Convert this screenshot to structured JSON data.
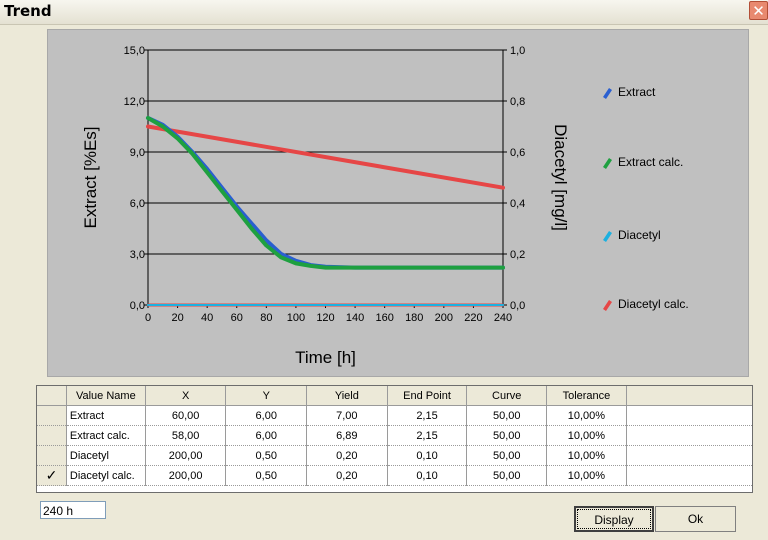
{
  "window": {
    "title": "Trend",
    "close_glyph": "✕"
  },
  "chart_data": {
    "type": "line",
    "xlabel": "Time [h]",
    "ylabel_left": "Extract [%Es]",
    "ylabel_right": "Diacetyl [mg/l]",
    "xlim": [
      0,
      240
    ],
    "ylim_left": [
      0,
      15
    ],
    "ylim_right": [
      0,
      1
    ],
    "x_ticks": [
      "0",
      "20",
      "40",
      "60",
      "80",
      "100",
      "120",
      "140",
      "160",
      "180",
      "200",
      "220",
      "240"
    ],
    "y_ticks_left": [
      "0,0",
      "3,0",
      "6,0",
      "9,0",
      "12,0",
      "15,0"
    ],
    "y_ticks_right": [
      "0,0",
      "0,2",
      "0,4",
      "0,6",
      "0,8",
      "1,0"
    ],
    "grid": true,
    "legend_position": "right",
    "series": [
      {
        "name": "Extract",
        "color": "#2a5fd0",
        "axis": "left",
        "x": [
          0,
          10,
          20,
          30,
          40,
          50,
          60,
          70,
          80,
          90,
          100,
          110,
          120,
          140,
          160,
          180,
          200,
          220,
          240
        ],
        "y": [
          11.0,
          10.6,
          9.9,
          9.0,
          8.0,
          6.9,
          5.8,
          4.8,
          3.8,
          3.0,
          2.6,
          2.35,
          2.25,
          2.2,
          2.2,
          2.2,
          2.2,
          2.2,
          2.2
        ]
      },
      {
        "name": "Extract calc.",
        "color": "#1ea040",
        "axis": "left",
        "x": [
          0,
          10,
          20,
          30,
          40,
          50,
          60,
          70,
          80,
          90,
          100,
          110,
          120,
          140,
          160,
          180,
          200,
          220,
          240
        ],
        "y": [
          11.0,
          10.5,
          9.8,
          8.9,
          7.8,
          6.7,
          5.6,
          4.5,
          3.5,
          2.8,
          2.45,
          2.3,
          2.2,
          2.2,
          2.2,
          2.2,
          2.2,
          2.2,
          2.2
        ]
      },
      {
        "name": "Diacetyl",
        "color": "#1cb0e0",
        "axis": "right",
        "x": [
          0,
          240
        ],
        "y": [
          0.0,
          0.0
        ]
      },
      {
        "name": "Diacetyl calc.",
        "color": "#e64646",
        "axis": "right",
        "x": [
          0,
          240
        ],
        "y": [
          0.7,
          0.46
        ]
      }
    ],
    "diacetyl_calc_baseline": {
      "x": [
        0,
        240
      ],
      "y": [
        0.0,
        0.0
      ]
    }
  },
  "table": {
    "columns": [
      "Value Name",
      "X",
      "Y",
      "Yield",
      "End Point",
      "Curve",
      "Tolerance"
    ],
    "rows": [
      {
        "check": "",
        "name": "Extract",
        "x": "60,00",
        "y": "6,00",
        "yield": "7,00",
        "end": "2,15",
        "curve": "50,00",
        "tol": "10,00%"
      },
      {
        "check": "",
        "name": "Extract calc.",
        "x": "58,00",
        "y": "6,00",
        "yield": "6,89",
        "end": "2,15",
        "curve": "50,00",
        "tol": "10,00%"
      },
      {
        "check": "",
        "name": "Diacetyl",
        "x": "200,00",
        "y": "0,50",
        "yield": "0,20",
        "end": "0,10",
        "curve": "50,00",
        "tol": "10,00%"
      },
      {
        "check": "✓",
        "name": "Diacetyl calc.",
        "x": "200,00",
        "y": "0,50",
        "yield": "0,20",
        "end": "0,10",
        "curve": "50,00",
        "tol": "10,00%"
      }
    ]
  },
  "time_field": {
    "value": "240 h"
  },
  "buttons": {
    "display": "Display",
    "ok": "Ok"
  }
}
